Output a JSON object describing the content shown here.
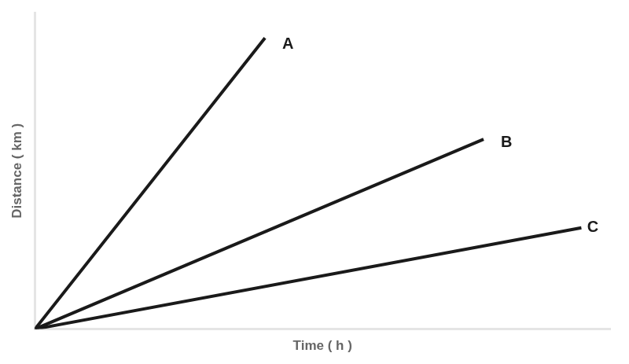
{
  "chart_data": {
    "type": "line",
    "xlabel": "Time ( h )",
    "ylabel": "Distance ( km )",
    "xlim": [
      0,
      10
    ],
    "ylim": [
      0,
      10
    ],
    "grid": false,
    "tick_labels": false,
    "series": [
      {
        "x": [
          0,
          4.0
        ],
        "values": [
          0,
          9.2
        ],
        "color": "#1a1a1a"
      },
      {
        "x": [
          0,
          7.8
        ],
        "values": [
          0,
          6.0
        ],
        "color": "#1a1a1a"
      },
      {
        "x": [
          0,
          9.5
        ],
        "values": [
          0,
          3.2
        ],
        "color": "#1a1a1a"
      }
    ],
    "annotations": [
      {
        "text": "A",
        "x": 4.3,
        "y": 9.0
      },
      {
        "text": "B",
        "x": 8.1,
        "y": 5.9
      },
      {
        "text": "C",
        "x": 9.6,
        "y": 3.2
      }
    ]
  }
}
